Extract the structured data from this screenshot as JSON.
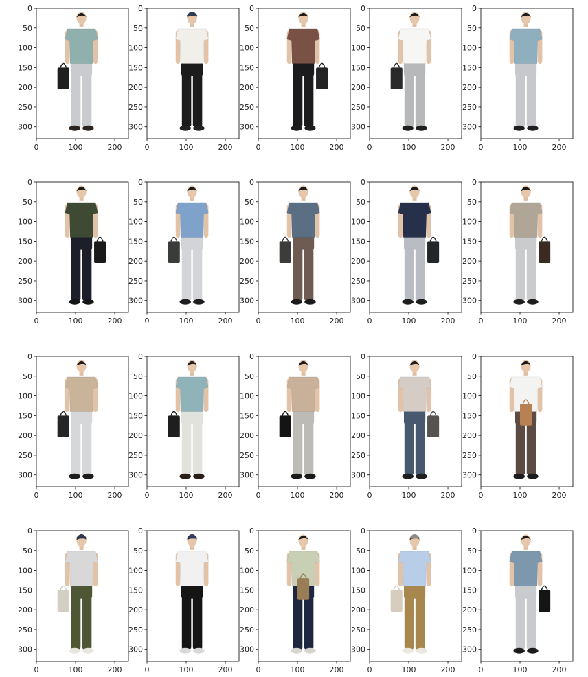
{
  "chart_data": {
    "type": "image_grid",
    "rows": 4,
    "cols": 5,
    "x_ticks": [
      0,
      100,
      200
    ],
    "y_ticks": [
      0,
      50,
      100,
      150,
      200,
      250,
      300
    ],
    "xlim": [
      0,
      235
    ],
    "ylim": [
      330,
      0
    ],
    "panels": [
      {
        "top": "#8fb0ad",
        "bottom": "#c9cbce",
        "shoe": "#2c2420",
        "bag": "#1f1f1f",
        "bag_side": "left",
        "cap": ""
      },
      {
        "top": "#f1efea",
        "bottom": "#1c1c1c",
        "shoe": "#222222",
        "bag": "",
        "bag_side": "",
        "cap": "#2f3b55"
      },
      {
        "top": "#7a5145",
        "bottom": "#1b1b1d",
        "shoe": "#1c1c1c",
        "bag": "#242424",
        "bag_side": "right",
        "cap": ""
      },
      {
        "top": "#f6f6f4",
        "bottom": "#b7b8ba",
        "shoe": "#1e1e1e",
        "bag": "#2a2a2a",
        "bag_side": "left",
        "cap": ""
      },
      {
        "top": "#8fafbf",
        "bottom": "#c6c8cb",
        "shoe": "#1f1f1f",
        "bag": "",
        "bag_side": "",
        "cap": ""
      },
      {
        "top": "#3f4a35",
        "bottom": "#1c1f2a",
        "shoe": "#151515",
        "bag": "#1a1a1a",
        "bag_side": "right",
        "cap": ""
      },
      {
        "top": "#7ea2c9",
        "bottom": "#d2d4d7",
        "shoe": "#1e1e1e",
        "bag": "#3a3c3a",
        "bag_side": "left",
        "cap": ""
      },
      {
        "top": "#5a6f84",
        "bottom": "#6e5c52",
        "shoe": "#1a1a1a",
        "bag": "#3c3c3a",
        "bag_side": "left",
        "cap": ""
      },
      {
        "top": "#27304a",
        "bottom": "#b9bcc2",
        "shoe": "#1e1e1e",
        "bag": "#222628",
        "bag_side": "right",
        "cap": ""
      },
      {
        "top": "#b0a698",
        "bottom": "#c9cbcd",
        "shoe": "#1e1e1e",
        "bag": "#3a2a22",
        "bag_side": "right",
        "cap": ""
      },
      {
        "top": "#c9b39a",
        "bottom": "#d6d7d9",
        "shoe": "#1c1c1c",
        "bag": "#262626",
        "bag_side": "left",
        "cap": ""
      },
      {
        "top": "#8fb3b8",
        "bottom": "#e2e2dc",
        "shoe": "#2a1d18",
        "bag": "#1e1e1e",
        "bag_side": "left",
        "cap": ""
      },
      {
        "top": "#c8b09a",
        "bottom": "#bdbbb6",
        "shoe": "#1a1a1a",
        "bag": "#141414",
        "bag_side": "left",
        "cap": ""
      },
      {
        "top": "#d6ccc6",
        "bottom": "#48586e",
        "shoe": "#1e1e1e",
        "bag": "#555250",
        "bag_side": "right",
        "cap": ""
      },
      {
        "top": "#f3f3f1",
        "bottom": "#5b4b43",
        "shoe": "#1c1c1c",
        "bag": "#b88154",
        "bag_side": "center",
        "cap": ""
      },
      {
        "top": "#d8d8d8",
        "bottom": "#4e5635",
        "shoe": "#e9e6e0",
        "bag": "#d3cfc5",
        "bag_side": "left",
        "cap": "#2e3850"
      },
      {
        "top": "#f1f1f1",
        "bottom": "#151515",
        "shoe": "#d8d8d8",
        "bag": "",
        "bag_side": "",
        "cap": "#2f3a5a"
      },
      {
        "top": "#c8cfb4",
        "bottom": "#1f2740",
        "shoe": "#d8d5cf",
        "bag": "#9a7c56",
        "bag_side": "center",
        "cap": ""
      },
      {
        "top": "#b7cde8",
        "bottom": "#a8874f",
        "shoe": "#ebe8e1",
        "bag": "#d6cdbf",
        "bag_side": "left",
        "cap": "#8d8c84"
      },
      {
        "top": "#7d98ad",
        "bottom": "#c8cacd",
        "shoe": "#1c1c1c",
        "bag": "#151515",
        "bag_side": "right",
        "cap": ""
      }
    ]
  }
}
